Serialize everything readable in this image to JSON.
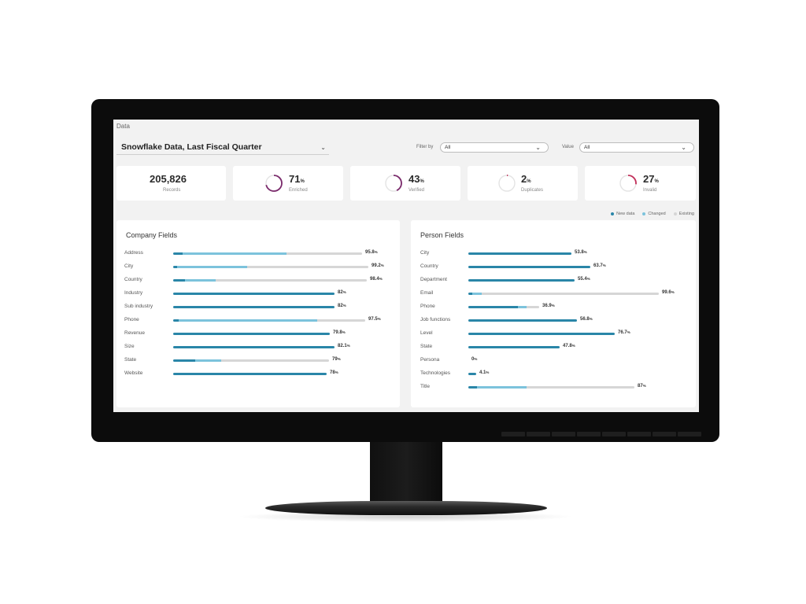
{
  "app": {
    "title": "Data"
  },
  "dataset": {
    "label": "Snowflake Data, Last Fiscal Quarter",
    "chevron_icon": "chevron-down-icon"
  },
  "filters": {
    "filter_by_label": "Filter by",
    "filter_by_value": "All",
    "value_label": "Value",
    "value_value": "All"
  },
  "kpis": {
    "records": {
      "value": "205,826",
      "label": "Records"
    },
    "enriched": {
      "value": "71",
      "unit": "%",
      "label": "Enriched",
      "fraction": 0.71,
      "color": "#7a2a6b"
    },
    "verified": {
      "value": "43",
      "unit": "%",
      "label": "Verified",
      "fraction": 0.43,
      "color": "#7a2a6b"
    },
    "duplicates": {
      "value": "2",
      "unit": "%",
      "label": "Duplicates",
      "fraction": 0.02,
      "color": "#c2305a"
    },
    "invalid": {
      "value": "27",
      "unit": "%",
      "label": "Invalid",
      "fraction": 0.27,
      "color": "#c2305a"
    }
  },
  "legend": {
    "new": "New data",
    "changed": "Changed",
    "existing": "Existing",
    "colors": {
      "new": "#2a86a8",
      "changed": "#7cc3dc",
      "existing": "#d6d6d6"
    }
  },
  "company": {
    "title": "Company Fields",
    "rows": [
      {
        "name": "Address",
        "value": "95.8",
        "unit": "%",
        "new": 0.05,
        "changed": 0.55,
        "existing": 0.4
      },
      {
        "name": "City",
        "value": "99.2",
        "unit": "%",
        "new": 0.02,
        "changed": 0.36,
        "existing": 0.62
      },
      {
        "name": "Country",
        "value": "98.4",
        "unit": "%",
        "new": 0.06,
        "changed": 0.16,
        "existing": 0.78
      },
      {
        "name": "Industry",
        "value": "82",
        "unit": "%",
        "new": 1.0,
        "changed": 0,
        "existing": 0
      },
      {
        "name": "Sub industry",
        "value": "82",
        "unit": "%",
        "new": 1.0,
        "changed": 0,
        "existing": 0
      },
      {
        "name": "Phone",
        "value": "97.5",
        "unit": "%",
        "new": 0.03,
        "changed": 0.72,
        "existing": 0.25
      },
      {
        "name": "Revenue",
        "value": "79.8",
        "unit": "%",
        "new": 1.0,
        "changed": 0,
        "existing": 0
      },
      {
        "name": "Size",
        "value": "82.1",
        "unit": "%",
        "new": 1.0,
        "changed": 0,
        "existing": 0
      },
      {
        "name": "State",
        "value": "79",
        "unit": "%",
        "new": 0.14,
        "changed": 0.17,
        "existing": 0.69
      },
      {
        "name": "Website",
        "value": "78",
        "unit": "%",
        "new": 1.0,
        "changed": 0,
        "existing": 0
      }
    ]
  },
  "person": {
    "title": "Person Fields",
    "rows": [
      {
        "name": "City",
        "value": "53.8",
        "unit": "%",
        "new": 1.0,
        "changed": 0,
        "existing": 0
      },
      {
        "name": "Country",
        "value": "63.7",
        "unit": "%",
        "new": 1.0,
        "changed": 0,
        "existing": 0
      },
      {
        "name": "Department",
        "value": "55.4",
        "unit": "%",
        "new": 1.0,
        "changed": 0,
        "existing": 0
      },
      {
        "name": "Email",
        "value": "99.6",
        "unit": "%",
        "new": 0.02,
        "changed": 0.05,
        "existing": 0.93
      },
      {
        "name": "Phone",
        "value": "36.9",
        "unit": "%",
        "new": 0.7,
        "changed": 0.12,
        "existing": 0.18
      },
      {
        "name": "Job functions",
        "value": "56.8",
        "unit": "%",
        "new": 1.0,
        "changed": 0,
        "existing": 0
      },
      {
        "name": "Level",
        "value": "76.7",
        "unit": "%",
        "new": 1.0,
        "changed": 0,
        "existing": 0
      },
      {
        "name": "State",
        "value": "47.8",
        "unit": "%",
        "new": 1.0,
        "changed": 0,
        "existing": 0
      },
      {
        "name": "Persona",
        "value": "0",
        "unit": "%",
        "new": 0,
        "changed": 0,
        "existing": 0
      },
      {
        "name": "Technologies",
        "value": "4.1",
        "unit": "%",
        "new": 1.0,
        "changed": 0,
        "existing": 0
      },
      {
        "name": "Title",
        "value": "87",
        "unit": "%",
        "new": 0.05,
        "changed": 0.3,
        "existing": 0.65
      }
    ]
  }
}
